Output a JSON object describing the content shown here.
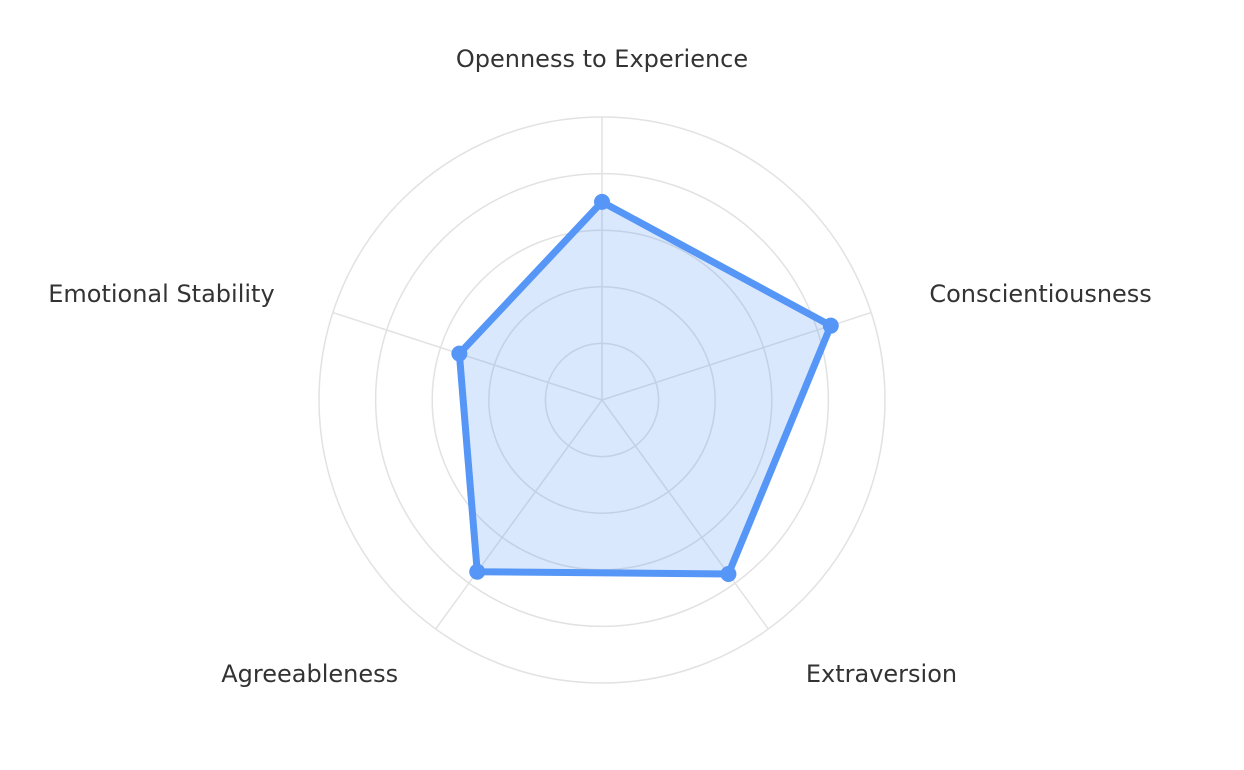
{
  "chart_data": {
    "type": "radar",
    "categories": [
      "Openness to Experience",
      "Conscientiousness",
      "Extraversion",
      "Agreeableness",
      "Emotional Stability"
    ],
    "series": [
      {
        "color": "#5596f6",
        "values": [
          70,
          85,
          76,
          75,
          53
        ]
      }
    ],
    "rlim": [
      0,
      100
    ],
    "rticks": [
      20,
      40,
      60,
      80,
      100
    ],
    "grid": true
  }
}
